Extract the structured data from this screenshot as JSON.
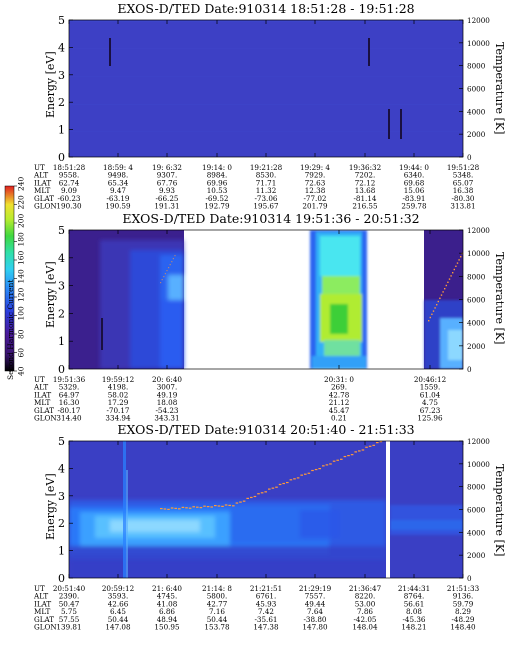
{
  "colors": {
    "background_plasma": "#3a3fc4",
    "dark_purple": "#3a1470",
    "blue": "#2a64f0",
    "light_blue": "#58b0ff",
    "cyan": "#48e6f0",
    "green_yellow": "#b0ec30",
    "green": "#3ccf38",
    "gap_white": "#ffffff",
    "temperature_trace": "#ff9a3a"
  },
  "colorbar": {
    "title": "Second Harmonic Current",
    "ticks": [
      "40",
      "60",
      "80",
      "100",
      "120",
      "140",
      "160",
      "180",
      "200",
      "220",
      "240"
    ]
  },
  "chart_data": [
    {
      "type": "heatmap",
      "title": "EXOS-D/TED   Date:910314   18:51:28 - 19:51:28",
      "ylabel": "Energy [eV]",
      "ylabel_right": "Temperature [K]",
      "ylim": [
        0,
        5
      ],
      "ylim_right": [
        0,
        12000
      ],
      "yticks": [
        "0",
        "1",
        "2",
        "3",
        "4",
        "5"
      ],
      "yticks_right": [
        "0",
        "2000",
        "4000",
        "6000",
        "8000",
        "10000",
        "12000"
      ],
      "row_labels": [
        "UT",
        "ALT",
        "ILAT",
        "MLT",
        "GLAT",
        "GLON"
      ],
      "columns": [
        [
          "18:51:28",
          "9558.",
          "62.74",
          "9.09",
          "-60.23",
          "190.30"
        ],
        [
          "18:59: 4",
          "9498.",
          "65.34",
          "9.47",
          "-63.19",
          "190.59"
        ],
        [
          "19: 6:32",
          "9307.",
          "67.76",
          "9.93",
          "-66.25",
          "191.31"
        ],
        [
          "19:14: 0",
          "8984.",
          "69.96",
          "10.53",
          "-69.52",
          "192.79"
        ],
        [
          "19:21:28",
          "8530.",
          "71.71",
          "11.32",
          "-73.06",
          "195.67"
        ],
        [
          "19:29: 4",
          "7929.",
          "72.63",
          "12.38",
          "-77.02",
          "201.79"
        ],
        [
          "19:36:32",
          "7202.",
          "72.12",
          "13.68",
          "-81.14",
          "216.55"
        ],
        [
          "19:44: 0",
          "6340.",
          "69.68",
          "15.06",
          "-83.91",
          "259.78"
        ],
        [
          "19:51:28",
          "5348.",
          "65.07",
          "16.38",
          "-80.30",
          "313.81"
        ]
      ]
    },
    {
      "type": "heatmap",
      "title": "EXOS-D/TED   Date:910314   19:51:36 - 20:51:32",
      "ylabel": "Energy [eV]",
      "ylabel_right": "Temperature [K]",
      "ylim": [
        0,
        5
      ],
      "ylim_right": [
        0,
        12000
      ],
      "yticks": [
        "0",
        "1",
        "2",
        "3",
        "4",
        "5"
      ],
      "yticks_right": [
        "0",
        "2000",
        "4000",
        "6000",
        "8000",
        "10000",
        "12000"
      ],
      "row_labels": [
        "UT",
        "ALT",
        "ILAT",
        "MLT",
        "GLAT",
        "GLON"
      ],
      "columns": [
        [
          "19:51:36",
          "5329.",
          "64.97",
          "16.30",
          "-80.17",
          "314.40"
        ],
        [
          "19:59:12",
          "4198.",
          "58.02",
          "17.29",
          "-70.17",
          "334.94"
        ],
        [
          "20: 6:40",
          "3007.",
          "49.19",
          "18.08",
          "-54.23",
          "343.31"
        ],
        [
          "20:31: 0",
          "269.",
          "42.78",
          "21.12",
          "45.47",
          "0.21"
        ],
        [
          "20:46:12",
          "1559.",
          "61.04",
          "4.75",
          "67.23",
          "125.96"
        ]
      ]
    },
    {
      "type": "heatmap",
      "title": "EXOS-D/TED   Date:910314   20:51:40 - 21:51:33",
      "ylabel": "Energy [eV]",
      "ylabel_right": "Temperature [K]",
      "ylim": [
        0,
        5
      ],
      "ylim_right": [
        0,
        12000
      ],
      "yticks": [
        "0",
        "1",
        "2",
        "3",
        "4",
        "5"
      ],
      "yticks_right": [
        "0",
        "2000",
        "4000",
        "6000",
        "8000",
        "10000",
        "12000"
      ],
      "row_labels": [
        "UT",
        "ALT",
        "ILAT",
        "MLT",
        "GLAT",
        "GLON"
      ],
      "columns": [
        [
          "20:51:40",
          "2390.",
          "50.47",
          "5.75",
          "57.55",
          "139.81"
        ],
        [
          "20:59:12",
          "3593.",
          "42.66",
          "6.45",
          "50.44",
          "147.08"
        ],
        [
          "21: 6:40",
          "4745.",
          "41.08",
          "6.86",
          "48.94",
          "150.95"
        ],
        [
          "21:14: 8",
          "5800.",
          "42.77",
          "7.16",
          "50.44",
          "153.78"
        ],
        [
          "21:21:51",
          "6761.",
          "45.93",
          "7.42",
          "-35.61",
          "147.38"
        ],
        [
          "21:29:19",
          "7557.",
          "49.44",
          "7.64",
          "-38.80",
          "147.80"
        ],
        [
          "21:36:47",
          "8220.",
          "53.00",
          "7.86",
          "-42.05",
          "148.04"
        ],
        [
          "21:44:31",
          "8764.",
          "56.61",
          "8.08",
          "-45.36",
          "148.21"
        ],
        [
          "21:51:33",
          "9136.",
          "59.79",
          "8.29",
          "-48.29",
          "148.40"
        ]
      ]
    }
  ]
}
